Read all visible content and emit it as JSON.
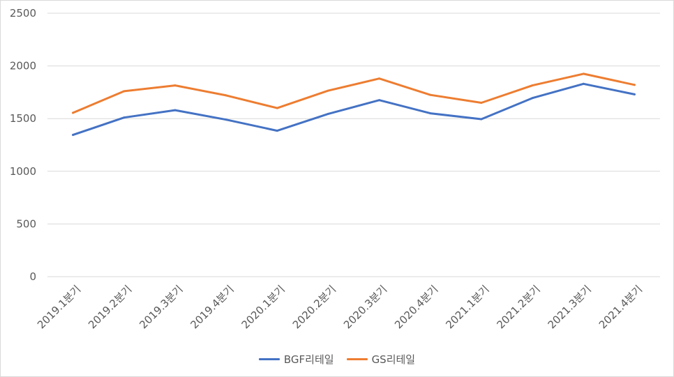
{
  "chart_data": {
    "type": "line",
    "categories": [
      "2019.1분기",
      "2019.2분기",
      "2019.3분기",
      "2019.4분기",
      "2020.1분기",
      "2020.2분기",
      "2020.3분기",
      "2020.4분기",
      "2021.1분기",
      "2021.2분기",
      "2021.3분기",
      "2021.4분기"
    ],
    "series": [
      {
        "name": "BGF리테일",
        "color": "#4472c4",
        "values": [
          1345,
          1510,
          1580,
          1490,
          1385,
          1545,
          1675,
          1550,
          1495,
          1695,
          1830,
          1730
        ]
      },
      {
        "name": "GS리테일",
        "color": "#ed7d31",
        "values": [
          1555,
          1760,
          1815,
          1720,
          1600,
          1765,
          1880,
          1725,
          1650,
          1815,
          1925,
          1820
        ]
      }
    ],
    "ylim": [
      0,
      2500
    ],
    "yticks": [
      0,
      500,
      1000,
      1500,
      2000,
      2500
    ],
    "title": "",
    "xlabel": "",
    "ylabel": "",
    "grid": true,
    "legend_position": "bottom"
  }
}
